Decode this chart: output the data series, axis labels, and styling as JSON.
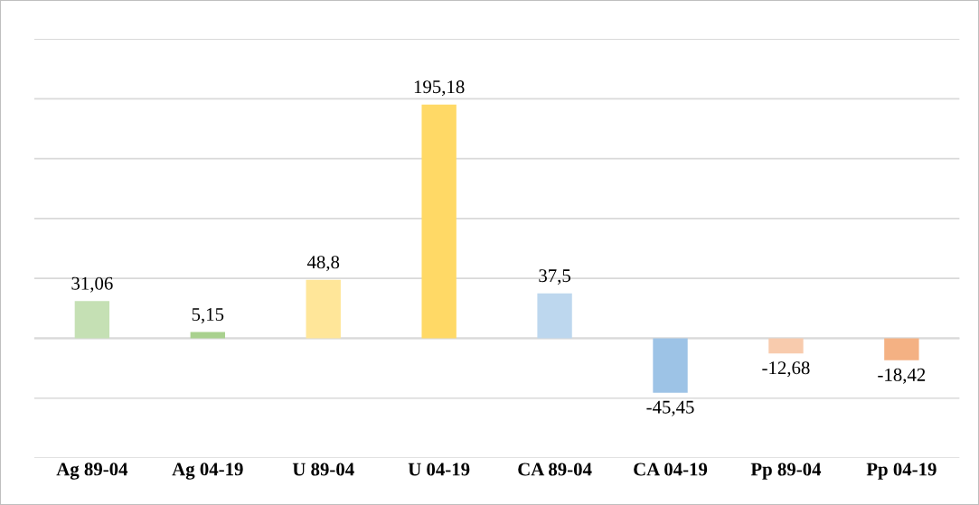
{
  "chart_data": {
    "type": "bar",
    "categories": [
      "Ag 89-04",
      "Ag 04-19",
      "U 89-04",
      "U 04-19",
      "CA 89-04",
      "CA 04-19",
      "Pp 89-04",
      "Pp 04-19"
    ],
    "values": [
      31.06,
      5.15,
      48.8,
      195.18,
      37.5,
      -45.45,
      -12.68,
      -18.42
    ],
    "colors": [
      "#c5e0b4",
      "#a9d18e",
      "#ffe699",
      "#ffd966",
      "#bdd7ee",
      "#9dc3e6",
      "#f8cbad",
      "#f4b183"
    ],
    "value_labels": [
      "31,06",
      "5,15",
      "48,8",
      "195,18",
      "37,5",
      "-45,45",
      "-12,68",
      "-18,42"
    ],
    "ylim": [
      -100,
      250
    ],
    "yticks": [
      -100,
      -50,
      0,
      50,
      100,
      150,
      200,
      250
    ],
    "grid": "y",
    "tick_labels": "x"
  }
}
